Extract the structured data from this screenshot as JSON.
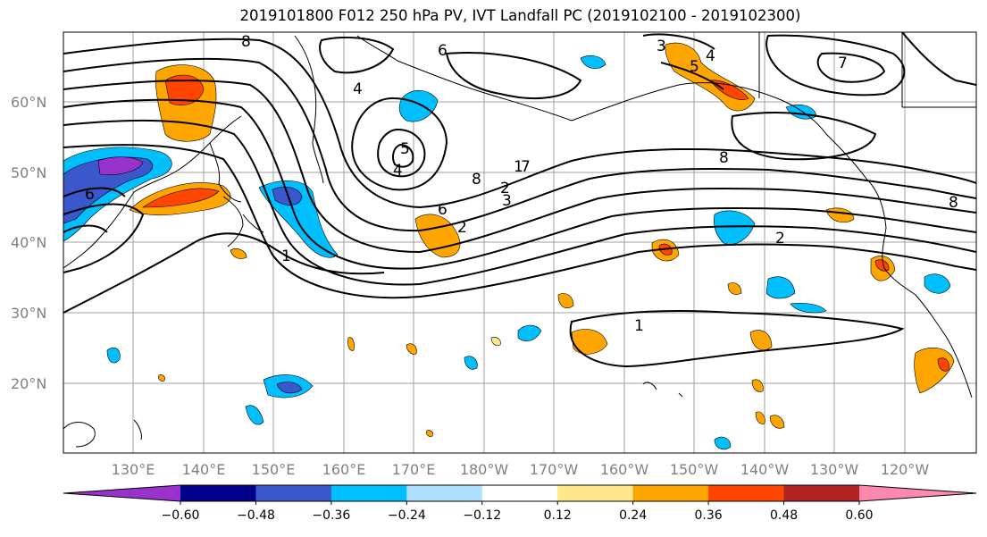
{
  "title": "2019101800 F012 250 hPa PV, IVT Landfall PC (2019102100 - 2019102300)",
  "map": {
    "lat_labels": [
      "60°N",
      "50°N",
      "40°N",
      "30°N",
      "20°N"
    ],
    "lon_labels": [
      "130°E",
      "140°E",
      "150°E",
      "160°E",
      "170°E",
      "180°W",
      "170°W",
      "160°W",
      "150°W",
      "140°W",
      "130°W",
      "120°W"
    ],
    "contour_labels": [
      "8",
      "6",
      "4",
      "5",
      "7",
      "3",
      "4",
      "5",
      "8",
      "1",
      "2",
      "6",
      "4",
      "3",
      "8",
      "6",
      "2",
      "1",
      "2",
      "1",
      "7",
      "8"
    ],
    "shading_colors": {
      "strong_negative": "#3a58cc",
      "moderate_negative": "#00bfff",
      "weak_positive": "#ffe88c",
      "moderate_positive": "#ffa500",
      "strong_positive": "#ff4500"
    }
  },
  "colorbar": {
    "colors": [
      "#9932cc",
      "#00008b",
      "#3a58cc",
      "#00bfff",
      "#b0e0ff",
      "#ffffff",
      "#ffe88c",
      "#ffa500",
      "#ff4500",
      "#b22222",
      "#ff88b0"
    ],
    "tick_labels": [
      "−0.60",
      "−0.48",
      "−0.36",
      "−0.24",
      "−0.12",
      "0.12",
      "0.24",
      "0.36",
      "0.48",
      "0.60"
    ]
  }
}
